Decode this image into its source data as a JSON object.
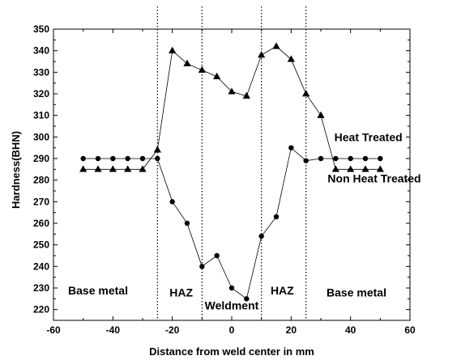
{
  "chart_data": {
    "type": "line",
    "xlabel": "Distance from weld center in mm",
    "ylabel": "Hardness(BHN)",
    "xlim": [
      -60,
      60
    ],
    "ylim": [
      215,
      350
    ],
    "x_ticks": [
      -60,
      -40,
      -20,
      0,
      20,
      40,
      60
    ],
    "y_ticks": [
      220,
      230,
      240,
      250,
      260,
      270,
      280,
      290,
      300,
      310,
      320,
      330,
      340,
      350
    ],
    "grid": false,
    "series": [
      {
        "marker": "triangle",
        "x": [
          -50,
          -45,
          -40,
          -35,
          -30,
          -25,
          -20,
          -15,
          -10,
          -5,
          0,
          5,
          10,
          15,
          20,
          25,
          30,
          35,
          40,
          45,
          50
        ],
        "y": [
          285,
          285,
          285,
          285,
          285,
          294,
          340,
          334,
          331,
          328,
          321,
          319,
          338,
          342,
          336,
          320,
          310,
          285,
          285,
          285,
          285
        ]
      },
      {
        "marker": "circle",
        "x": [
          -50,
          -45,
          -40,
          -35,
          -30,
          -25,
          -20,
          -15,
          -10,
          -5,
          0,
          5,
          10,
          15,
          20,
          25,
          30,
          35,
          40,
          45,
          50
        ],
        "y": [
          290,
          290,
          290,
          290,
          290,
          290,
          270,
          260,
          240,
          245,
          230,
          225,
          254,
          263,
          295,
          289,
          290,
          290,
          290,
          290,
          290
        ]
      }
    ],
    "vlines": [
      -25,
      -10,
      10,
      25
    ],
    "annotations": [
      {
        "text": "Heat Treated",
        "x": 46,
        "y": 298
      },
      {
        "text": "Non Heat Treated",
        "x": 48,
        "y": 279
      },
      {
        "text": "Base metal",
        "x": -45,
        "y": 227
      },
      {
        "text": "HAZ",
        "x": -17,
        "y": 226
      },
      {
        "text": "Weldment",
        "x": 0,
        "y": 220
      },
      {
        "text": "HAZ",
        "x": 17,
        "y": 227
      },
      {
        "text": "Base metal",
        "x": 42,
        "y": 226
      }
    ]
  }
}
